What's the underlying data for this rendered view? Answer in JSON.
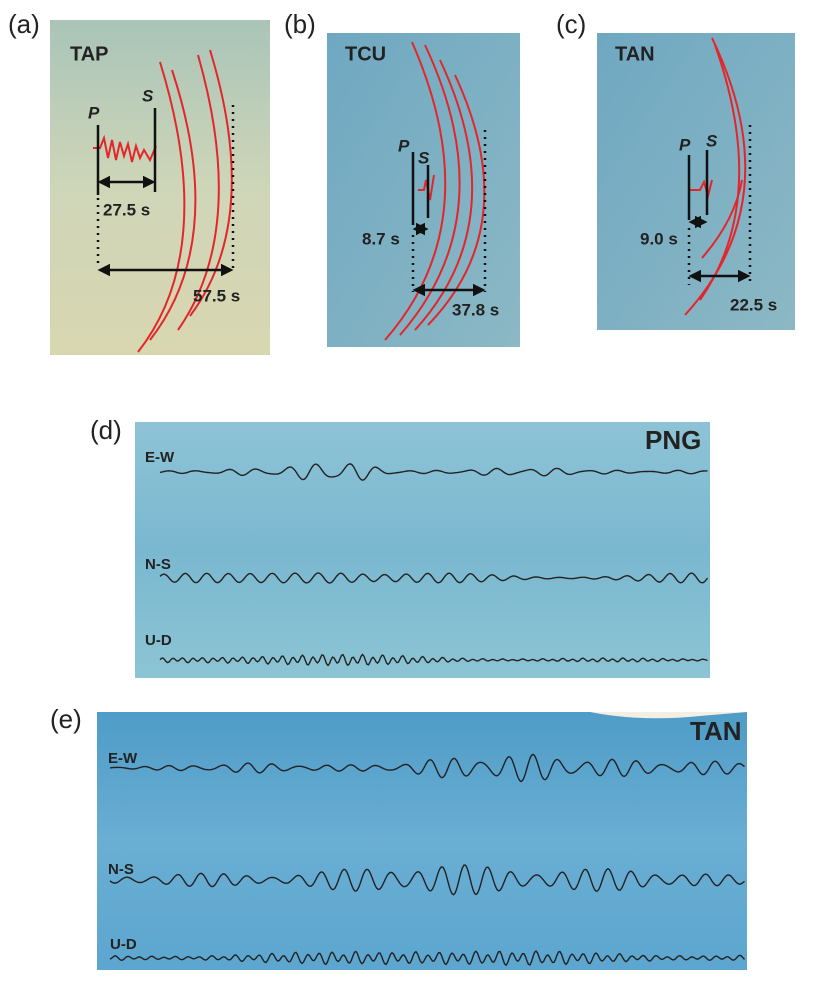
{
  "panels": [
    {
      "label": "(a)",
      "station": "TAP",
      "p": "P",
      "s": "S",
      "sp_interval": "27.5 s",
      "duration": "57.5 s"
    },
    {
      "label": "(b)",
      "station": "TCU",
      "p": "P",
      "s": "S",
      "sp_interval": "8.7 s",
      "duration": "37.8 s"
    },
    {
      "label": "(c)",
      "station": "TAN",
      "p": "P",
      "s": "S",
      "sp_interval": "9.0 s",
      "duration": "22.5 s"
    }
  ],
  "records": [
    {
      "label": "(d)",
      "station": "PNG",
      "components": [
        "E-W",
        "N-S",
        "U-D"
      ]
    },
    {
      "label": "(e)",
      "station": "TAN",
      "components": [
        "E-W",
        "N-S",
        "U-D"
      ]
    }
  ]
}
